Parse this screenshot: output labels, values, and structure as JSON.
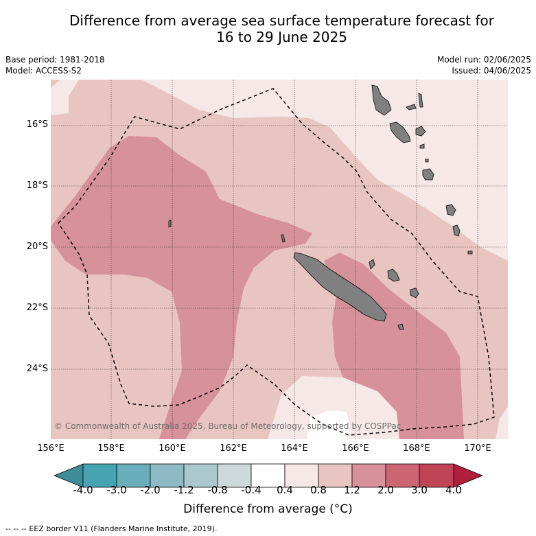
{
  "title_line1": "Difference from average sea surface temperature forecast for",
  "title_line2": "16 to 29 June 2025",
  "meta": {
    "base_period": "Base period: 1981-2018",
    "model": "Model: ACCESS-S2",
    "model_run": "Model run: 02/06/2025",
    "issued": "Issued: 04/06/2025"
  },
  "map": {
    "lat_labels": [
      "16°S",
      "18°S",
      "20°S",
      "22°S",
      "24°S"
    ],
    "lon_labels": [
      "156°E",
      "158°E",
      "160°E",
      "162°E",
      "164°E",
      "166°E",
      "168°E",
      "170°E"
    ],
    "copyright": "© Commonwealth of Australia 2025, Bureau of Meteorology, supported by COSPPac",
    "land_color": "#808080",
    "eez_line_color": "#000000"
  },
  "colorbar": {
    "ticks": [
      "-4.0",
      "-3.0",
      "-2.0",
      "-1.2",
      "-0.8",
      "-0.4",
      "0.4",
      "0.8",
      "1.2",
      "2.0",
      "3.0",
      "4.0"
    ],
    "colors": [
      "#47a2b1",
      "#6aadbb",
      "#8ebac5",
      "#aac8cd",
      "#cdd9db",
      "#ffffff",
      "#f5e8e7",
      "#e9c5c1",
      "#d7919a",
      "#cd6673",
      "#bf4456"
    ],
    "under_color": "#3f8c99",
    "over_color": "#b01f3c",
    "label": "Difference from average (°C)"
  },
  "footnote": "-- -- -- EEZ border V11 (Flanders Marine Institute, 2019)."
}
